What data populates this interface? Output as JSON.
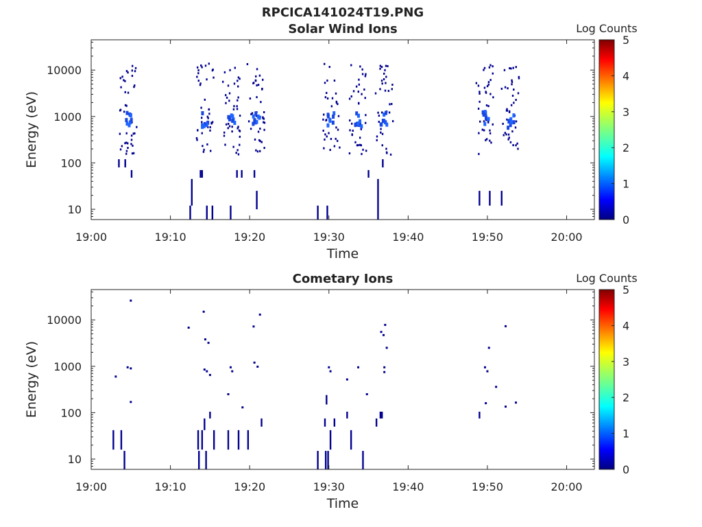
{
  "figure_title": "RPCICA141024T19.PNG",
  "colors": {
    "background": "#ffffff",
    "axis": "#222222",
    "low_count": "#00008f",
    "mid_count": "#1e64ff"
  },
  "colormap": "jet",
  "chart_data": [
    {
      "type": "heatmap",
      "title": "Solar Wind Ions",
      "xlabel": "Time",
      "ylabel": "Energy (eV)",
      "x_ticks": [
        "19:00",
        "19:10",
        "19:20",
        "19:30",
        "19:40",
        "19:50",
        "20:00"
      ],
      "x_tick_minutes": [
        0,
        10,
        20,
        30,
        40,
        50,
        60
      ],
      "xlim_minutes_after_19_00": [
        0,
        63.5
      ],
      "y_scale": "log",
      "y_ticks": [
        "10",
        "100",
        "1000",
        "10000"
      ],
      "y_tick_values": [
        10,
        100,
        1000,
        10000
      ],
      "ylim": [
        6,
        45000
      ],
      "colorbar": {
        "label": "Log Counts",
        "range": [
          0,
          5
        ],
        "ticks": [
          "0",
          "1",
          "2",
          "3",
          "4",
          "5"
        ]
      },
      "burst_centers_minutes": [
        4.7,
        14.4,
        17.7,
        20.8,
        30.3,
        33.7,
        37.0,
        49.7,
        52.9
      ],
      "core_energy_eV": 850,
      "low_energy_streaks": [
        {
          "t": 3.5,
          "e_min": 80,
          "e_max": 120
        },
        {
          "t": 4.3,
          "e_min": 80,
          "e_max": 120
        },
        {
          "t": 5.1,
          "e_min": 48,
          "e_max": 70
        },
        {
          "t": 12.5,
          "e_min": 6,
          "e_max": 12
        },
        {
          "t": 12.7,
          "e_min": 12,
          "e_max": 45
        },
        {
          "t": 13.8,
          "e_min": 48,
          "e_max": 70
        },
        {
          "t": 14.0,
          "e_min": 48,
          "e_max": 70
        },
        {
          "t": 14.6,
          "e_min": 6,
          "e_max": 12
        },
        {
          "t": 15.3,
          "e_min": 6,
          "e_max": 12
        },
        {
          "t": 17.6,
          "e_min": 6,
          "e_max": 12
        },
        {
          "t": 18.4,
          "e_min": 48,
          "e_max": 70
        },
        {
          "t": 19.0,
          "e_min": 48,
          "e_max": 70
        },
        {
          "t": 20.6,
          "e_min": 48,
          "e_max": 70
        },
        {
          "t": 20.9,
          "e_min": 10,
          "e_max": 25
        },
        {
          "t": 28.6,
          "e_min": 6,
          "e_max": 12
        },
        {
          "t": 29.8,
          "e_min": 6,
          "e_max": 12
        },
        {
          "t": 35.0,
          "e_min": 48,
          "e_max": 70
        },
        {
          "t": 36.2,
          "e_min": 6,
          "e_max": 45
        },
        {
          "t": 36.8,
          "e_min": 80,
          "e_max": 120
        },
        {
          "t": 49.0,
          "e_min": 12,
          "e_max": 25
        },
        {
          "t": 50.3,
          "e_min": 12,
          "e_max": 25
        },
        {
          "t": 51.8,
          "e_min": 12,
          "e_max": 25
        }
      ]
    },
    {
      "type": "heatmap",
      "title": "Cometary Ions",
      "xlabel": "Time",
      "ylabel": "Energy (eV)",
      "x_ticks": [
        "19:00",
        "19:10",
        "19:20",
        "19:30",
        "19:40",
        "19:50",
        "20:00"
      ],
      "x_tick_minutes": [
        0,
        10,
        20,
        30,
        40,
        50,
        60
      ],
      "xlim_minutes_after_19_00": [
        0,
        63.5
      ],
      "y_scale": "log",
      "y_ticks": [
        "10",
        "100",
        "1000",
        "10000"
      ],
      "y_tick_values": [
        10,
        100,
        1000,
        10000
      ],
      "ylim": [
        6,
        45000
      ],
      "colorbar": {
        "label": "Log Counts",
        "range": [
          0,
          5
        ],
        "ticks": [
          "0",
          "1",
          "2",
          "3",
          "4",
          "5"
        ]
      },
      "points": [
        {
          "t": 5.0,
          "e": 26000
        },
        {
          "t": 3.1,
          "e": 600
        },
        {
          "t": 4.6,
          "e": 950
        },
        {
          "t": 5.0,
          "e": 900
        },
        {
          "t": 5.0,
          "e": 170
        },
        {
          "t": 12.3,
          "e": 6800
        },
        {
          "t": 14.2,
          "e": 15000
        },
        {
          "t": 14.4,
          "e": 3800
        },
        {
          "t": 14.8,
          "e": 3200
        },
        {
          "t": 14.3,
          "e": 850
        },
        {
          "t": 14.6,
          "e": 780
        },
        {
          "t": 15.0,
          "e": 650
        },
        {
          "t": 17.6,
          "e": 950
        },
        {
          "t": 17.8,
          "e": 780
        },
        {
          "t": 17.3,
          "e": 250
        },
        {
          "t": 19.1,
          "e": 130
        },
        {
          "t": 20.5,
          "e": 7200
        },
        {
          "t": 21.3,
          "e": 13000
        },
        {
          "t": 20.6,
          "e": 1200
        },
        {
          "t": 21.0,
          "e": 980
        },
        {
          "t": 30.0,
          "e": 950
        },
        {
          "t": 30.2,
          "e": 780
        },
        {
          "t": 32.3,
          "e": 520
        },
        {
          "t": 33.7,
          "e": 950
        },
        {
          "t": 34.8,
          "e": 250
        },
        {
          "t": 36.6,
          "e": 5500
        },
        {
          "t": 36.9,
          "e": 4700
        },
        {
          "t": 37.1,
          "e": 7800
        },
        {
          "t": 37.3,
          "e": 2500
        },
        {
          "t": 37.0,
          "e": 950
        },
        {
          "t": 37.0,
          "e": 750
        },
        {
          "t": 49.7,
          "e": 950
        },
        {
          "t": 50.0,
          "e": 780
        },
        {
          "t": 50.2,
          "e": 2500
        },
        {
          "t": 51.1,
          "e": 360
        },
        {
          "t": 52.3,
          "e": 7300
        },
        {
          "t": 49.8,
          "e": 160
        },
        {
          "t": 52.3,
          "e": 135
        },
        {
          "t": 53.6,
          "e": 165
        }
      ],
      "low_energy_streaks": [
        {
          "t": 2.8,
          "e_min": 16,
          "e_max": 42
        },
        {
          "t": 3.8,
          "e_min": 16,
          "e_max": 42
        },
        {
          "t": 4.2,
          "e_min": 6,
          "e_max": 15
        },
        {
          "t": 13.5,
          "e_min": 16,
          "e_max": 42
        },
        {
          "t": 13.6,
          "e_min": 6,
          "e_max": 15
        },
        {
          "t": 14.0,
          "e_min": 16,
          "e_max": 42
        },
        {
          "t": 14.5,
          "e_min": 6,
          "e_max": 15
        },
        {
          "t": 14.3,
          "e_min": 42,
          "e_max": 75
        },
        {
          "t": 15.0,
          "e_min": 75,
          "e_max": 105
        },
        {
          "t": 15.5,
          "e_min": 16,
          "e_max": 42
        },
        {
          "t": 17.3,
          "e_min": 16,
          "e_max": 42
        },
        {
          "t": 18.6,
          "e_min": 16,
          "e_max": 42
        },
        {
          "t": 19.8,
          "e_min": 16,
          "e_max": 42
        },
        {
          "t": 21.5,
          "e_min": 50,
          "e_max": 75
        },
        {
          "t": 28.6,
          "e_min": 6,
          "e_max": 15
        },
        {
          "t": 29.6,
          "e_min": 6,
          "e_max": 15
        },
        {
          "t": 29.9,
          "e_min": 6,
          "e_max": 15
        },
        {
          "t": 29.7,
          "e_min": 150,
          "e_max": 240
        },
        {
          "t": 29.5,
          "e_min": 50,
          "e_max": 75
        },
        {
          "t": 30.2,
          "e_min": 16,
          "e_max": 42
        },
        {
          "t": 30.7,
          "e_min": 50,
          "e_max": 75
        },
        {
          "t": 32.3,
          "e_min": 75,
          "e_max": 105
        },
        {
          "t": 32.8,
          "e_min": 16,
          "e_max": 42
        },
        {
          "t": 34.3,
          "e_min": 6,
          "e_max": 15
        },
        {
          "t": 36.0,
          "e_min": 50,
          "e_max": 75
        },
        {
          "t": 36.5,
          "e_min": 75,
          "e_max": 105
        },
        {
          "t": 36.7,
          "e_min": 75,
          "e_max": 105
        },
        {
          "t": 49.0,
          "e_min": 75,
          "e_max": 105
        }
      ]
    }
  ]
}
